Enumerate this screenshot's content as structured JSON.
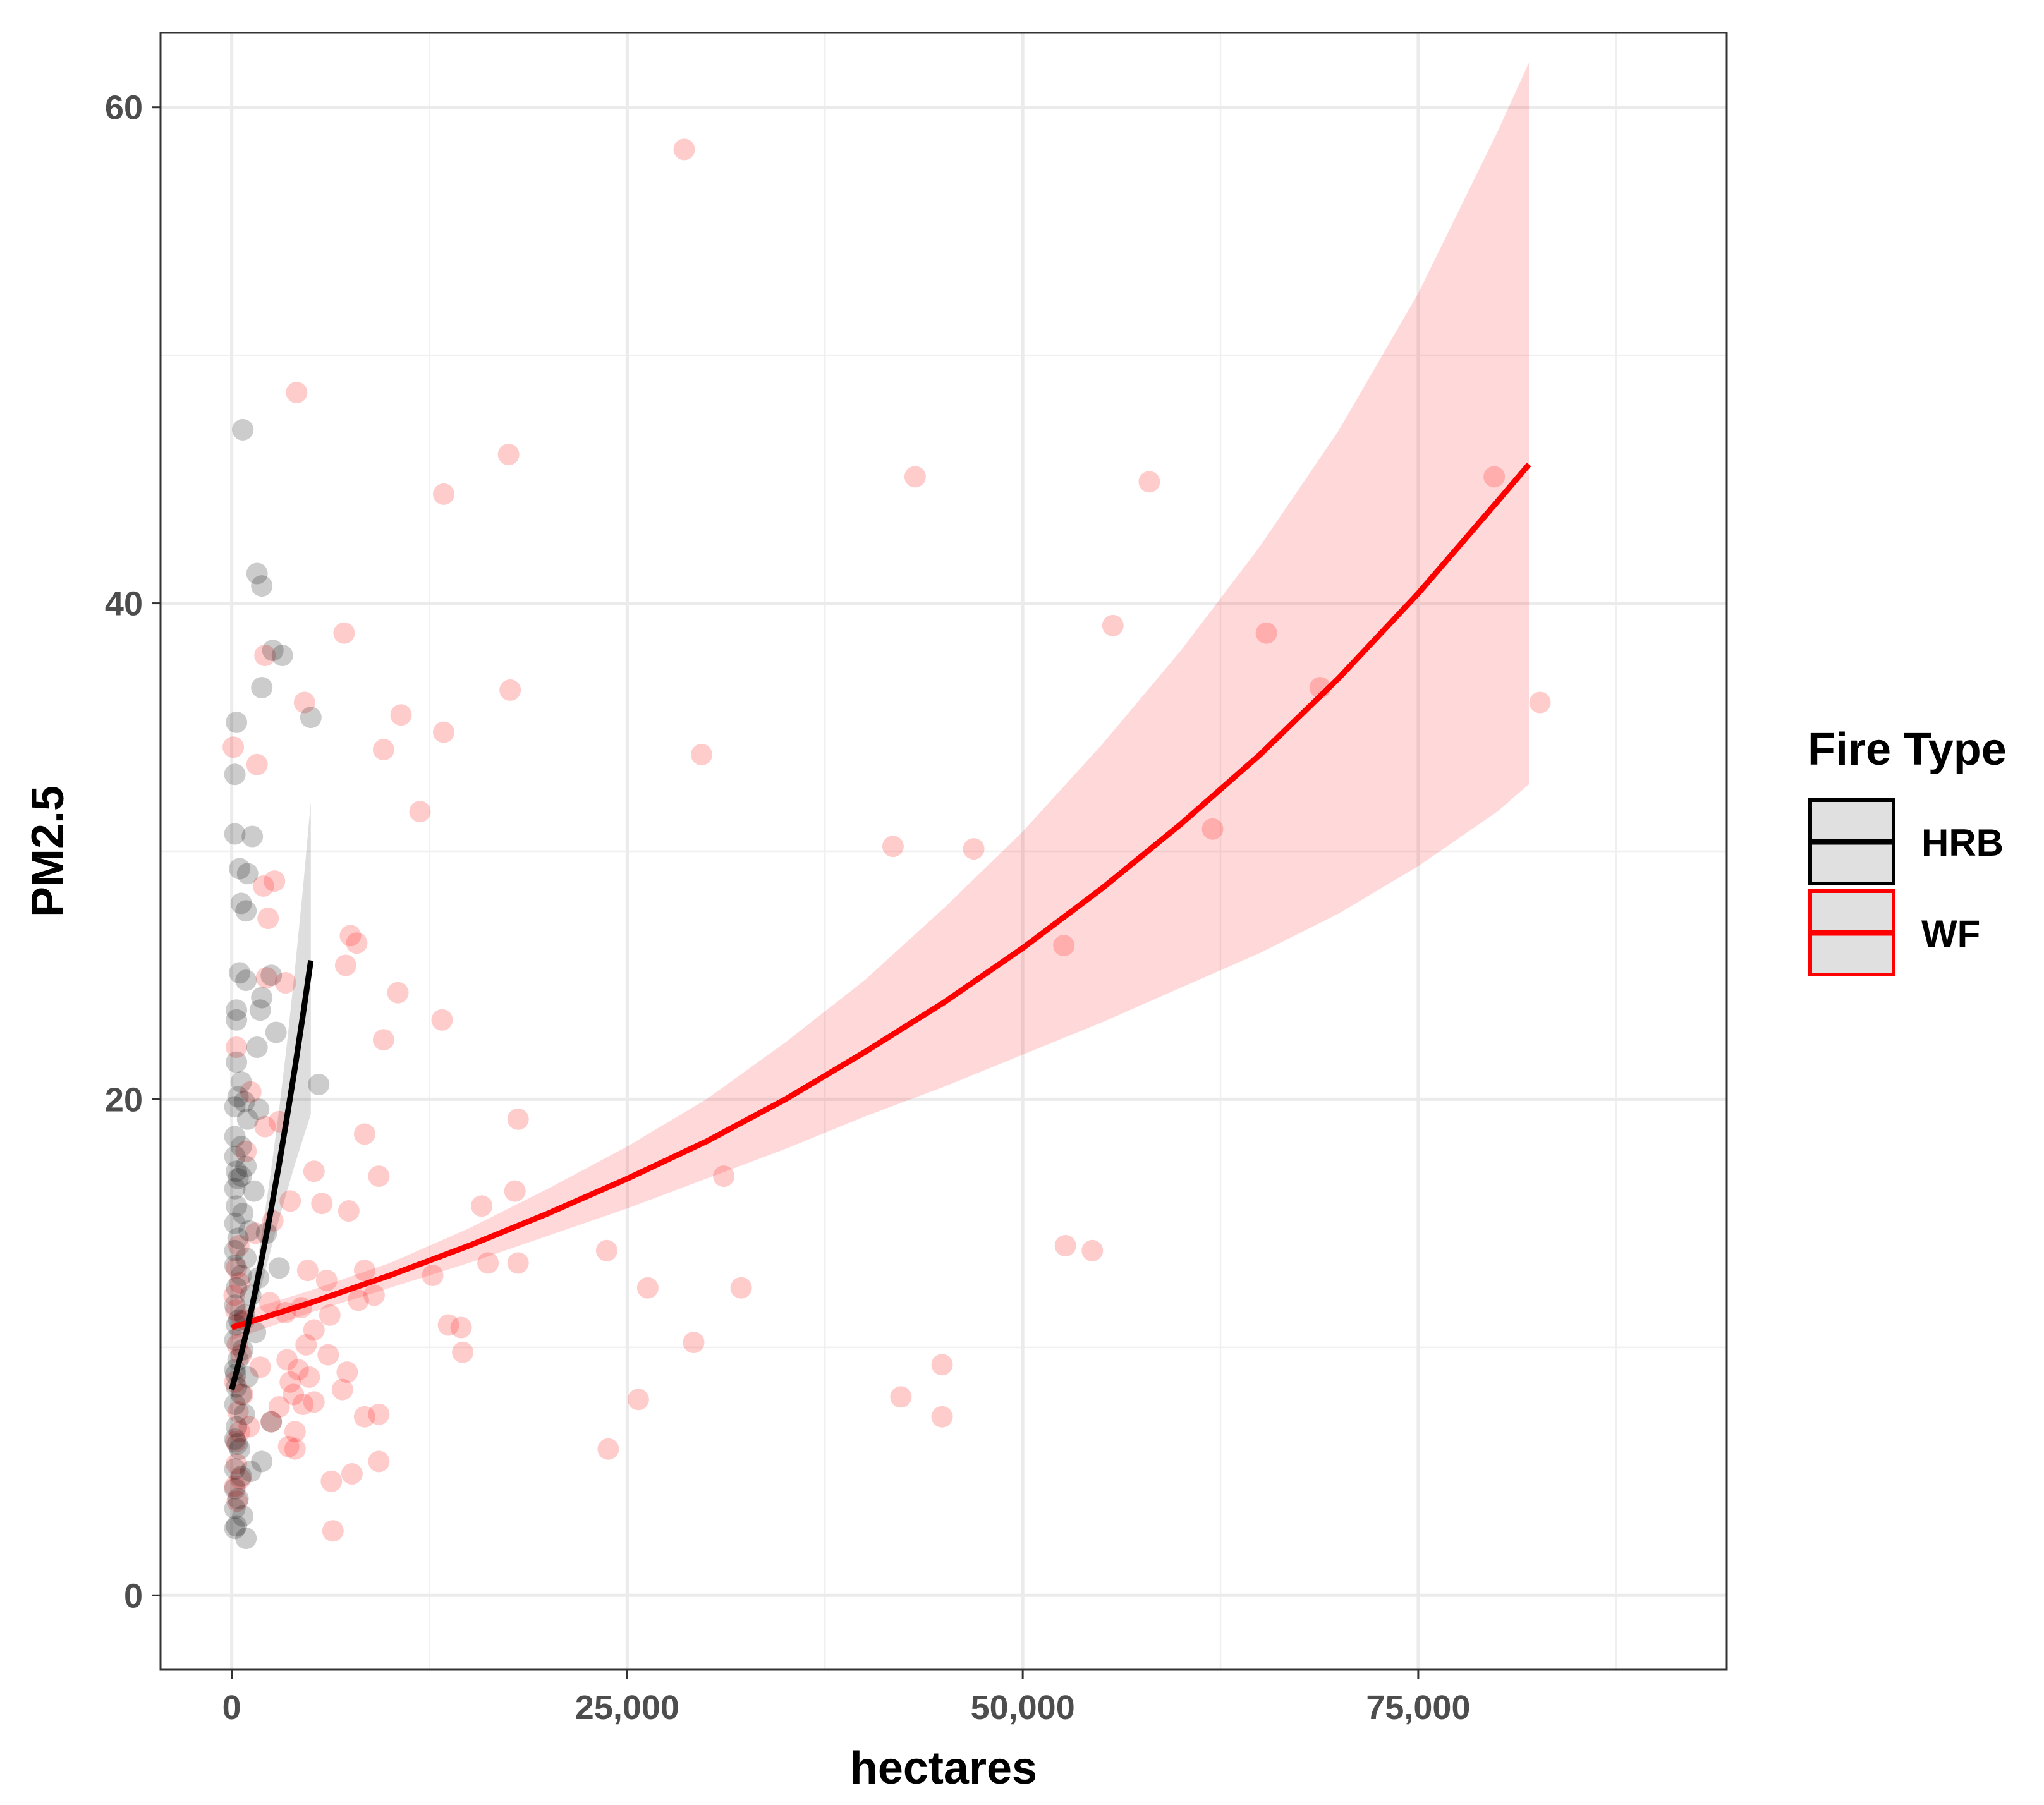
{
  "chart_data": {
    "type": "scatter",
    "title": "",
    "xlabel": "hectares",
    "ylabel": "PM2.5",
    "xlim": [
      -4500,
      94500
    ],
    "ylim": [
      -3,
      63
    ],
    "x_ticks": [
      0,
      25000,
      50000,
      75000
    ],
    "x_tick_labels": [
      "0",
      "25,000",
      "50,000",
      "75,000"
    ],
    "y_ticks": [
      0,
      20,
      40,
      60
    ],
    "y_tick_labels": [
      "0",
      "20",
      "40",
      "60"
    ],
    "grid": true,
    "legend": {
      "title": "Fire Type",
      "placement": "right",
      "entries": [
        {
          "label": "HRB",
          "color": "#000000"
        },
        {
          "label": "WF",
          "color": "#ff0000"
        }
      ]
    },
    "series": [
      {
        "name": "HRB",
        "color": "#000000",
        "point_alpha": 0.2,
        "points": [
          [
            700,
            47
          ],
          [
            1600,
            41.2
          ],
          [
            1900,
            40.7
          ],
          [
            2600,
            38.1
          ],
          [
            3200,
            37.9
          ],
          [
            1900,
            36.6
          ],
          [
            5000,
            35.4
          ],
          [
            300,
            35.2
          ],
          [
            200,
            33.1
          ],
          [
            200,
            30.7
          ],
          [
            1300,
            30.6
          ],
          [
            500,
            29.3
          ],
          [
            1000,
            29.1
          ],
          [
            600,
            27.9
          ],
          [
            900,
            27.6
          ],
          [
            500,
            25.1
          ],
          [
            2500,
            25
          ],
          [
            900,
            24.8
          ],
          [
            1900,
            24.1
          ],
          [
            300,
            23.6
          ],
          [
            1800,
            23.6
          ],
          [
            300,
            23.2
          ],
          [
            2800,
            22.7
          ],
          [
            1600,
            22.1
          ],
          [
            300,
            21.5
          ],
          [
            5500,
            20.6
          ],
          [
            600,
            20.7
          ],
          [
            400,
            20.1
          ],
          [
            800,
            19.9
          ],
          [
            200,
            19.7
          ],
          [
            1700,
            19.6
          ],
          [
            1000,
            19.2
          ],
          [
            200,
            18.5
          ],
          [
            600,
            18.1
          ],
          [
            200,
            17.7
          ],
          [
            900,
            17.3
          ],
          [
            300,
            17.1
          ],
          [
            600,
            16.9
          ],
          [
            200,
            16.4
          ],
          [
            1400,
            16.3
          ],
          [
            300,
            15.7
          ],
          [
            700,
            15.4
          ],
          [
            200,
            15
          ],
          [
            1100,
            14.7
          ],
          [
            400,
            14.4
          ],
          [
            200,
            13.9
          ],
          [
            900,
            13.6
          ],
          [
            200,
            13.3
          ],
          [
            600,
            12.9
          ],
          [
            300,
            12.4
          ],
          [
            1200,
            12.1
          ],
          [
            200,
            11.7
          ],
          [
            800,
            11.3
          ],
          [
            300,
            10.9
          ],
          [
            1500,
            10.6
          ],
          [
            200,
            10.3
          ],
          [
            700,
            9.9
          ],
          [
            400,
            9.5
          ],
          [
            200,
            9.1
          ],
          [
            1000,
            8.8
          ],
          [
            300,
            8.4
          ],
          [
            600,
            8.1
          ],
          [
            200,
            7.7
          ],
          [
            800,
            7.3
          ],
          [
            2500,
            7
          ],
          [
            300,
            6.8
          ],
          [
            200,
            6.3
          ],
          [
            500,
            5.9
          ],
          [
            1900,
            5.4
          ],
          [
            200,
            5.1
          ],
          [
            600,
            4.8
          ],
          [
            200,
            4.3
          ],
          [
            400,
            3.9
          ],
          [
            200,
            3.5
          ],
          [
            700,
            3.2
          ],
          [
            300,
            2.8
          ],
          [
            900,
            2.3
          ],
          [
            200,
            2.7
          ],
          [
            1200,
            5
          ],
          [
            1700,
            12.8
          ],
          [
            2200,
            14.6
          ],
          [
            3000,
            13.2
          ],
          [
            400,
            16.8
          ],
          [
            250,
            8.9
          ],
          [
            450,
            11.1
          ],
          [
            350,
            6.1
          ]
        ],
        "fit": {
          "x": [
            0,
            500,
            1000,
            1500,
            2000,
            2500,
            3000,
            3500,
            4000,
            4500,
            5000
          ],
          "y": [
            8.3,
            9.5,
            10.8,
            12.3,
            13.9,
            15.6,
            17.4,
            19.3,
            21.3,
            23.4,
            25.6
          ],
          "band_low": [
            7.9,
            9.1,
            10.3,
            11.6,
            12.8,
            14,
            15.2,
            16.3,
            17.4,
            18.4,
            19.4
          ],
          "band_high": [
            8.7,
            9.9,
            11.3,
            13,
            15,
            17.2,
            19.6,
            22.3,
            25.3,
            28.5,
            32
          ]
        }
      },
      {
        "name": "WF",
        "color": "#ff0000",
        "point_alpha": 0.2,
        "points": [
          [
            28600,
            58.3
          ],
          [
            4100,
            48.5
          ],
          [
            17500,
            46
          ],
          [
            13400,
            44.4
          ],
          [
            43200,
            45.1
          ],
          [
            58000,
            44.9
          ],
          [
            79800,
            45.1
          ],
          [
            55700,
            39.1
          ],
          [
            65400,
            38.8
          ],
          [
            7100,
            38.8
          ],
          [
            2100,
            37.9
          ],
          [
            17600,
            36.5
          ],
          [
            68800,
            36.6
          ],
          [
            82700,
            36
          ],
          [
            4600,
            36
          ],
          [
            10700,
            35.5
          ],
          [
            13400,
            34.8
          ],
          [
            9600,
            34.1
          ],
          [
            29700,
            33.9
          ],
          [
            100,
            34.2
          ],
          [
            1600,
            33.5
          ],
          [
            11900,
            31.6
          ],
          [
            62000,
            30.9
          ],
          [
            41800,
            30.2
          ],
          [
            46900,
            30.1
          ],
          [
            2700,
            28.8
          ],
          [
            2000,
            28.6
          ],
          [
            2300,
            27.3
          ],
          [
            7500,
            26.6
          ],
          [
            7900,
            26.3
          ],
          [
            52600,
            26.2
          ],
          [
            7200,
            25.4
          ],
          [
            2200,
            24.9
          ],
          [
            3400,
            24.7
          ],
          [
            10500,
            24.3
          ],
          [
            13300,
            23.2
          ],
          [
            9600,
            22.4
          ],
          [
            300,
            22.1
          ],
          [
            18100,
            19.2
          ],
          [
            8400,
            18.6
          ],
          [
            3000,
            19.1
          ],
          [
            2100,
            18.9
          ],
          [
            5200,
            17.1
          ],
          [
            9300,
            16.9
          ],
          [
            31100,
            16.9
          ],
          [
            17900,
            16.3
          ],
          [
            3700,
            15.9
          ],
          [
            5700,
            15.8
          ],
          [
            7400,
            15.5
          ],
          [
            15800,
            15.7
          ],
          [
            52700,
            14.1
          ],
          [
            54400,
            13.9
          ],
          [
            23700,
            13.9
          ],
          [
            16200,
            13.4
          ],
          [
            18100,
            13.4
          ],
          [
            4800,
            13.1
          ],
          [
            8400,
            13.1
          ],
          [
            12700,
            12.9
          ],
          [
            6000,
            12.7
          ],
          [
            26300,
            12.4
          ],
          [
            32200,
            12.4
          ],
          [
            9000,
            12.1
          ],
          [
            8000,
            11.9
          ],
          [
            4400,
            11.6
          ],
          [
            3400,
            11.4
          ],
          [
            6200,
            11.3
          ],
          [
            13700,
            10.9
          ],
          [
            14500,
            10.8
          ],
          [
            5200,
            10.7
          ],
          [
            29200,
            10.2
          ],
          [
            4700,
            10.1
          ],
          [
            14600,
            9.8
          ],
          [
            6100,
            9.7
          ],
          [
            3500,
            9.5
          ],
          [
            44900,
            9.3
          ],
          [
            4200,
            9.1
          ],
          [
            7300,
            9
          ],
          [
            4900,
            8.8
          ],
          [
            3700,
            8.6
          ],
          [
            7000,
            8.3
          ],
          [
            3900,
            8.1
          ],
          [
            42300,
            8
          ],
          [
            25700,
            7.9
          ],
          [
            5200,
            7.8
          ],
          [
            4500,
            7.7
          ],
          [
            3000,
            7.6
          ],
          [
            9300,
            7.3
          ],
          [
            8400,
            7.2
          ],
          [
            44900,
            7.2
          ],
          [
            2500,
            7
          ],
          [
            4000,
            6.6
          ],
          [
            3600,
            6
          ],
          [
            4000,
            5.9
          ],
          [
            23800,
            5.9
          ],
          [
            9300,
            5.4
          ],
          [
            7600,
            4.9
          ],
          [
            6300,
            4.6
          ],
          [
            6400,
            2.6
          ],
          [
            1200,
            20.3
          ],
          [
            900,
            17.9
          ],
          [
            1500,
            14.6
          ],
          [
            2600,
            15.1
          ],
          [
            1100,
            6.8
          ],
          [
            1800,
            9.2
          ],
          [
            2400,
            11.8
          ],
          [
            300,
            13.2
          ],
          [
            250,
            11.5
          ],
          [
            350,
            10.1
          ],
          [
            200,
            8.6
          ],
          [
            400,
            7.4
          ],
          [
            250,
            6.2
          ],
          [
            300,
            5.3
          ],
          [
            200,
            4.4
          ],
          [
            350,
            3.8
          ],
          [
            500,
            12.6
          ],
          [
            600,
            9.7
          ],
          [
            450,
            14.1
          ],
          [
            700,
            8.1
          ],
          [
            800,
            11.1
          ],
          [
            150,
            12.1
          ],
          [
            500,
            6.6
          ],
          [
            550,
            4.7
          ]
        ],
        "fit": {
          "x": [
            0,
            5000,
            10000,
            15000,
            20000,
            25000,
            30000,
            35000,
            40000,
            45000,
            50000,
            55000,
            60000,
            65000,
            70000,
            75000,
            80000,
            82000
          ],
          "y": [
            10.8,
            11.8,
            12.9,
            14.1,
            15.4,
            16.8,
            18.3,
            20,
            21.9,
            23.9,
            26.1,
            28.5,
            31.1,
            33.9,
            37,
            40.4,
            44.1,
            45.6
          ],
          "band_low": [
            10.3,
            11.4,
            12.4,
            13.4,
            14.5,
            15.6,
            16.8,
            18,
            19.3,
            20.5,
            21.8,
            23.1,
            24.5,
            25.9,
            27.5,
            29.4,
            31.6,
            32.7
          ],
          "band_high": [
            11.3,
            12.3,
            13.4,
            14.8,
            16.4,
            18.1,
            20,
            22.3,
            24.8,
            27.7,
            30.8,
            34.3,
            38.1,
            42.3,
            47,
            52.5,
            59,
            61.8
          ]
        }
      }
    ]
  }
}
